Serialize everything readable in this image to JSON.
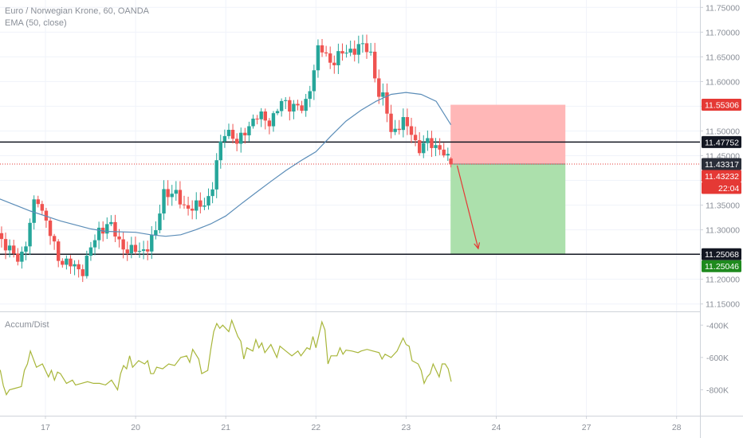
{
  "legend": {
    "symbol": "Euro / Norwegian Krone, 60, OANDA",
    "indicator": "EMA (50, close)",
    "oscillator": "Accum/Dist"
  },
  "colors": {
    "up": "#26a69a",
    "down": "#ef5350",
    "ema": "#5b8db8",
    "ad": "#a8b63a",
    "stop_zone": "#ffb3b3",
    "target_zone": "#a8dea8",
    "hline": "#131722",
    "entry": "#e53935",
    "target_tag": "#1e8a1e"
  },
  "chart_data": [
    {
      "type": "candlestick",
      "price_axis": {
        "range": [
          11.135,
          11.765
        ],
        "ticks": [
          "11.75000",
          "11.70000",
          "11.65000",
          "11.60000",
          "11.55000",
          "11.50000",
          "11.45000",
          "11.40000",
          "11.35000",
          "11.30000",
          "11.25000",
          "11.20000",
          "11.15000"
        ]
      },
      "time_axis": {
        "labels": [
          "17",
          "20",
          "21",
          "22",
          "23",
          "24",
          "27",
          "28"
        ],
        "label_positions": [
          0.5,
          3.5,
          6.5,
          9.5,
          12.5,
          15.5,
          18.5,
          21.5
        ]
      },
      "series": [
        {
          "name": "EMA (50, close)",
          "points": [
            [
              -1.5,
              11.368
            ],
            [
              -1,
              11.362
            ],
            [
              -0.5,
              11.35
            ],
            [
              0,
              11.338
            ],
            [
              0.5,
              11.328
            ],
            [
              1,
              11.318
            ],
            [
              1.5,
              11.31
            ],
            [
              2,
              11.302
            ],
            [
              2.5,
              11.297
            ],
            [
              3,
              11.296
            ],
            [
              3.5,
              11.295
            ],
            [
              4,
              11.29
            ],
            [
              4.5,
              11.287
            ],
            [
              5,
              11.29
            ],
            [
              5.5,
              11.3
            ],
            [
              6,
              11.312
            ],
            [
              6.5,
              11.328
            ],
            [
              7,
              11.352
            ],
            [
              7.5,
              11.375
            ],
            [
              8,
              11.398
            ],
            [
              8.5,
              11.42
            ],
            [
              9,
              11.44
            ],
            [
              9.5,
              11.458
            ],
            [
              10,
              11.49
            ],
            [
              10.5,
              11.52
            ],
            [
              11,
              11.542
            ],
            [
              11.5,
              11.56
            ],
            [
              12,
              11.574
            ],
            [
              12.5,
              11.578
            ],
            [
              13,
              11.574
            ],
            [
              13.5,
              11.56
            ],
            [
              13.99,
              11.5125
            ]
          ]
        },
        {
          "name": "Accum/Dist",
          "axis": {
            "ticks": [
              "-400K",
              "-600K",
              "-800K"
            ],
            "range": [
              -960000,
              -320000
            ]
          },
          "points": [
            [
              -1.5,
              -660000
            ],
            [
              -1.2,
              -680000
            ],
            [
              -1,
              -680000
            ],
            [
              -0.9,
              -775000
            ],
            [
              -0.8,
              -830000
            ],
            [
              -0.7,
              -800000
            ],
            [
              -0.5,
              -790000
            ],
            [
              -0.3,
              -780000
            ],
            [
              -0.2,
              -680000
            ],
            [
              -0.1,
              -640000
            ],
            [
              0,
              -560000
            ],
            [
              0.2,
              -660000
            ],
            [
              0.4,
              -640000
            ],
            [
              0.6,
              -720000
            ],
            [
              0.7,
              -680000
            ],
            [
              0.8,
              -740000
            ],
            [
              0.9,
              -690000
            ],
            [
              1.0,
              -700000
            ],
            [
              1.2,
              -760000
            ],
            [
              1.4,
              -740000
            ],
            [
              1.5,
              -770000
            ],
            [
              1.7,
              -760000
            ],
            [
              1.9,
              -750000
            ],
            [
              2.1,
              -760000
            ],
            [
              2.3,
              -760000
            ],
            [
              2.5,
              -770000
            ],
            [
              2.7,
              -740000
            ],
            [
              2.9,
              -800000
            ],
            [
              3.0,
              -700000
            ],
            [
              3.1,
              -650000
            ],
            [
              3.2,
              -670000
            ],
            [
              3.3,
              -590000
            ],
            [
              3.4,
              -660000
            ],
            [
              3.6,
              -620000
            ],
            [
              3.8,
              -640000
            ],
            [
              3.9,
              -620000
            ],
            [
              4.0,
              -700000
            ],
            [
              4.1,
              -700000
            ],
            [
              4.2,
              -660000
            ],
            [
              4.4,
              -670000
            ],
            [
              4.6,
              -640000
            ],
            [
              4.8,
              -650000
            ],
            [
              5.0,
              -600000
            ],
            [
              5.2,
              -590000
            ],
            [
              5.3,
              -630000
            ],
            [
              5.4,
              -550000
            ],
            [
              5.6,
              -610000
            ],
            [
              5.7,
              -700000
            ],
            [
              5.9,
              -680000
            ],
            [
              6.0,
              -550000
            ],
            [
              6.1,
              -440000
            ],
            [
              6.2,
              -390000
            ],
            [
              6.3,
              -420000
            ],
            [
              6.4,
              -400000
            ],
            [
              6.6,
              -440000
            ],
            [
              6.7,
              -370000
            ],
            [
              6.9,
              -470000
            ],
            [
              7.0,
              -500000
            ],
            [
              7.1,
              -610000
            ],
            [
              7.2,
              -540000
            ],
            [
              7.4,
              -560000
            ],
            [
              7.5,
              -490000
            ],
            [
              7.6,
              -540000
            ],
            [
              7.7,
              -510000
            ],
            [
              7.8,
              -570000
            ],
            [
              8.0,
              -520000
            ],
            [
              8.2,
              -600000
            ],
            [
              8.3,
              -530000
            ],
            [
              8.5,
              -560000
            ],
            [
              8.7,
              -590000
            ],
            [
              8.9,
              -560000
            ],
            [
              9.0,
              -590000
            ],
            [
              9.2,
              -540000
            ],
            [
              9.3,
              -550000
            ],
            [
              9.4,
              -470000
            ],
            [
              9.5,
              -540000
            ],
            [
              9.7,
              -380000
            ],
            [
              9.8,
              -430000
            ],
            [
              9.9,
              -640000
            ],
            [
              10.0,
              -590000
            ],
            [
              10.2,
              -590000
            ],
            [
              10.3,
              -540000
            ],
            [
              10.4,
              -580000
            ],
            [
              10.5,
              -555000
            ],
            [
              10.7,
              -560000
            ],
            [
              10.9,
              -570000
            ],
            [
              11.0,
              -560000
            ],
            [
              11.2,
              -550000
            ],
            [
              11.4,
              -560000
            ],
            [
              11.6,
              -570000
            ],
            [
              11.7,
              -610000
            ],
            [
              11.8,
              -580000
            ],
            [
              12.0,
              -600000
            ],
            [
              12.2,
              -560000
            ],
            [
              12.4,
              -480000
            ],
            [
              12.5,
              -520000
            ],
            [
              12.6,
              -530000
            ],
            [
              12.7,
              -620000
            ],
            [
              12.9,
              -640000
            ],
            [
              13.0,
              -680000
            ],
            [
              13.1,
              -760000
            ],
            [
              13.2,
              -720000
            ],
            [
              13.3,
              -700000
            ],
            [
              13.4,
              -640000
            ],
            [
              13.5,
              -680000
            ],
            [
              13.6,
              -720000
            ],
            [
              13.7,
              -640000
            ],
            [
              13.8,
              -640000
            ],
            [
              13.9,
              -670000
            ],
            [
              14.0,
              -750000
            ]
          ]
        }
      ],
      "levels": [
        {
          "label": "11.55306",
          "value": 11.55306,
          "role": "stop"
        },
        {
          "label": "11.47752",
          "value": 11.47752,
          "role": "resistance"
        },
        {
          "label": "11.43317",
          "value": 11.43317,
          "role": "entry"
        },
        {
          "label": "11.43232",
          "value": 11.43232,
          "role": "last_price"
        },
        {
          "label": "11.25068",
          "value": 11.25068,
          "role": "support"
        },
        {
          "label": "11.25046",
          "value": 11.25046,
          "role": "target"
        }
      ],
      "countdown": "22:04",
      "position": {
        "side": "short",
        "entry": 11.43317,
        "stop": 11.55306,
        "target": 11.25046,
        "start_x": 13.98,
        "end_x": 17.8
      }
    }
  ]
}
